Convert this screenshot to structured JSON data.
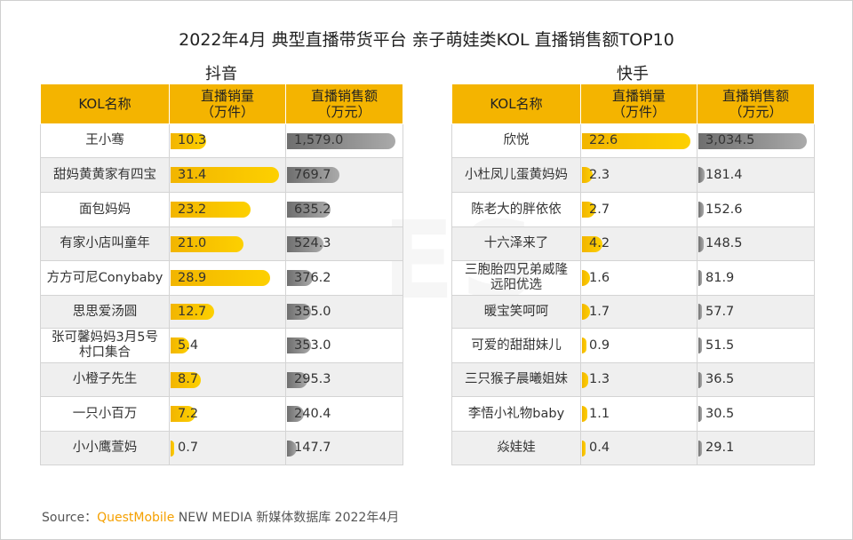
{
  "title": "2022年4月 典型直播带货平台 亲子萌娃类KOL 直播销售额TOP10",
  "watermark": "ES",
  "tables": [
    {
      "platform": "抖音",
      "headers": [
        "KOL名称",
        "直播销量\n（万件）",
        "直播销售额\n（万元）"
      ],
      "rows": [
        {
          "name": "王小骞",
          "volume": 10.3,
          "volume_text": "10.3",
          "amount": 1579.0,
          "amount_text": "1,579.0"
        },
        {
          "name": "甜妈黄黄家有四宝",
          "volume": 31.4,
          "volume_text": "31.4",
          "amount": 769.7,
          "amount_text": "769.7"
        },
        {
          "name": "面包妈妈",
          "volume": 23.2,
          "volume_text": "23.2",
          "amount": 635.2,
          "amount_text": "635.2"
        },
        {
          "name": "有家小店叫童年",
          "volume": 21.0,
          "volume_text": "21.0",
          "amount": 524.3,
          "amount_text": "524.3"
        },
        {
          "name": "方方可尼Conybaby",
          "volume": 28.9,
          "volume_text": "28.9",
          "amount": 376.2,
          "amount_text": "376.2"
        },
        {
          "name": "思思爱汤圆",
          "volume": 12.7,
          "volume_text": "12.7",
          "amount": 355.0,
          "amount_text": "355.0"
        },
        {
          "name": "张可馨妈妈3月5号\n村口集合",
          "volume": 5.4,
          "volume_text": "5.4",
          "amount": 353.0,
          "amount_text": "353.0"
        },
        {
          "name": "小橙子先生",
          "volume": 8.7,
          "volume_text": "8.7",
          "amount": 295.3,
          "amount_text": "295.3"
        },
        {
          "name": "一只小百万",
          "volume": 7.2,
          "volume_text": "7.2",
          "amount": 240.4,
          "amount_text": "240.4"
        },
        {
          "name": "小小鹰萱妈",
          "volume": 0.7,
          "volume_text": "0.7",
          "amount": 147.7,
          "amount_text": "147.7"
        }
      ]
    },
    {
      "platform": "快手",
      "headers": [
        "KOL名称",
        "直播销量\n（万件）",
        "直播销售额\n（万元）"
      ],
      "rows": [
        {
          "name": "欣悦",
          "volume": 22.6,
          "volume_text": "22.6",
          "amount": 3034.5,
          "amount_text": "3,034.5"
        },
        {
          "name": "小杜凤儿蛋黄妈妈",
          "volume": 2.3,
          "volume_text": "2.3",
          "amount": 181.4,
          "amount_text": "181.4"
        },
        {
          "name": "陈老大的胖依依",
          "volume": 2.7,
          "volume_text": "2.7",
          "amount": 152.6,
          "amount_text": "152.6"
        },
        {
          "name": "十六泽来了",
          "volume": 4.2,
          "volume_text": "4.2",
          "amount": 148.5,
          "amount_text": "148.5"
        },
        {
          "name": "三胞胎四兄弟威隆\n远阳优选",
          "volume": 1.6,
          "volume_text": "1.6",
          "amount": 81.9,
          "amount_text": "81.9"
        },
        {
          "name": "暖宝笑呵呵",
          "volume": 1.7,
          "volume_text": "1.7",
          "amount": 57.7,
          "amount_text": "57.7"
        },
        {
          "name": "可爱的甜甜妹儿",
          "volume": 0.9,
          "volume_text": "0.9",
          "amount": 51.5,
          "amount_text": "51.5"
        },
        {
          "name": "三只猴子晨曦姐妹",
          "volume": 1.3,
          "volume_text": "1.3",
          "amount": 36.5,
          "amount_text": "36.5"
        },
        {
          "name": "李悟小礼物baby",
          "volume": 1.1,
          "volume_text": "1.1",
          "amount": 30.5,
          "amount_text": "30.5"
        },
        {
          "name": "焱娃娃",
          "volume": 0.4,
          "volume_text": "0.4",
          "amount": 29.1,
          "amount_text": "29.1"
        }
      ]
    }
  ],
  "chart_data": [
    {
      "type": "table",
      "title": "2022年4月 典型直播带货平台 亲子萌娃类KOL 直播销售额TOP10 - 抖音",
      "columns": [
        "KOL名称",
        "直播销量（万件）",
        "直播销售额（万元）"
      ],
      "categories": [
        "王小骞",
        "甜妈黄黄家有四宝",
        "面包妈妈",
        "有家小店叫童年",
        "方方可尼Conybaby",
        "思思爱汤圆",
        "张可馨妈妈3月5号村口集合",
        "小橙子先生",
        "一只小百万",
        "小小鹰萱妈"
      ],
      "series": [
        {
          "name": "直播销量（万件）",
          "values": [
            10.3,
            31.4,
            23.2,
            21.0,
            28.9,
            12.7,
            5.4,
            8.7,
            7.2,
            0.7
          ]
        },
        {
          "name": "直播销售额（万元）",
          "values": [
            1579.0,
            769.7,
            635.2,
            524.3,
            376.2,
            355.0,
            353.0,
            295.3,
            240.4,
            147.7
          ]
        }
      ]
    },
    {
      "type": "table",
      "title": "2022年4月 典型直播带货平台 亲子萌娃类KOL 直播销售额TOP10 - 快手",
      "columns": [
        "KOL名称",
        "直播销量（万件）",
        "直播销售额（万元）"
      ],
      "categories": [
        "欣悦",
        "小杜凤儿蛋黄妈妈",
        "陈老大的胖依依",
        "十六泽来了",
        "三胞胎四兄弟威隆远阳优选",
        "暖宝笑呵呵",
        "可爱的甜甜妹儿",
        "三只猴子晨曦姐妹",
        "李悟小礼物baby",
        "焱娃娃"
      ],
      "series": [
        {
          "name": "直播销量（万件）",
          "values": [
            22.6,
            2.3,
            2.7,
            4.2,
            1.6,
            1.7,
            0.9,
            1.3,
            1.1,
            0.4
          ]
        },
        {
          "name": "直播销售额（万元）",
          "values": [
            3034.5,
            181.4,
            152.6,
            148.5,
            81.9,
            57.7,
            51.5,
            36.5,
            30.5,
            29.1
          ]
        }
      ]
    }
  ],
  "source": {
    "label": "Source：",
    "brand": "QuestMobile",
    "text": " NEW MEDIA 新媒体数据库 2022年4月"
  }
}
